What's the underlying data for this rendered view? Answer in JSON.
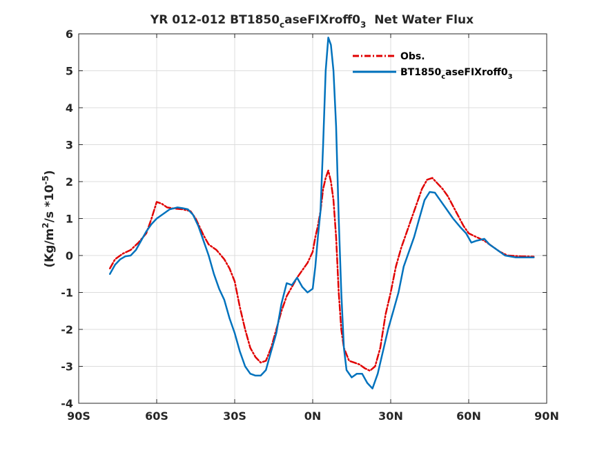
{
  "chart_data": {
    "type": "line",
    "title": "YR 012-012 BT1850_caseFIXroff0_3  Net Water Flux",
    "title_parts": {
      "pre": "YR 012-012 BT1850",
      "sub1": "c",
      "mid": "aseFIXroff0",
      "sub2": "3",
      "post": "  Net Water Flux"
    },
    "ylabel": "(Kg/m^2/s *10^-5)",
    "ylabel_parts": {
      "a": "(Kg/m",
      "sup1": "2",
      "b": "/s *10",
      "sup2": "-5",
      "c": ")"
    },
    "xlim": [
      -90,
      90
    ],
    "ylim": [
      -4,
      6
    ],
    "xticks": [
      -90,
      -60,
      -30,
      0,
      30,
      60,
      90
    ],
    "xtick_labels": [
      "90S",
      "60S",
      "30S",
      "0N",
      "30N",
      "60N",
      "90N"
    ],
    "yticks": [
      -4,
      -3,
      -2,
      -1,
      0,
      1,
      2,
      3,
      4,
      5,
      6
    ],
    "ytick_labels": [
      "-4",
      "-3",
      "-2",
      "-1",
      "0",
      "1",
      "2",
      "3",
      "4",
      "5",
      "6"
    ],
    "grid": true,
    "legend_position": "top-right",
    "series": [
      {
        "name": "Obs.",
        "label_parts": {
          "pre": "Obs."
        },
        "color": "#e00000",
        "style": "dashdot",
        "points": [
          [
            -78,
            -0.35
          ],
          [
            -76,
            -0.1
          ],
          [
            -73,
            0.05
          ],
          [
            -70,
            0.15
          ],
          [
            -67,
            0.35
          ],
          [
            -64,
            0.6
          ],
          [
            -62,
            1.0
          ],
          [
            -60,
            1.45
          ],
          [
            -58,
            1.4
          ],
          [
            -56,
            1.3
          ],
          [
            -53,
            1.27
          ],
          [
            -50,
            1.25
          ],
          [
            -47,
            1.2
          ],
          [
            -45,
            1.0
          ],
          [
            -42,
            0.55
          ],
          [
            -40,
            0.3
          ],
          [
            -37,
            0.15
          ],
          [
            -34,
            -0.1
          ],
          [
            -32,
            -0.35
          ],
          [
            -30,
            -0.7
          ],
          [
            -28,
            -1.4
          ],
          [
            -26,
            -2.0
          ],
          [
            -24,
            -2.5
          ],
          [
            -22,
            -2.75
          ],
          [
            -20,
            -2.9
          ],
          [
            -18,
            -2.85
          ],
          [
            -16,
            -2.5
          ],
          [
            -14,
            -2.0
          ],
          [
            -12,
            -1.5
          ],
          [
            -10,
            -1.1
          ],
          [
            -8,
            -0.85
          ],
          [
            -6,
            -0.6
          ],
          [
            -4,
            -0.4
          ],
          [
            -2,
            -0.2
          ],
          [
            0,
            0.1
          ],
          [
            1,
            0.5
          ],
          [
            2,
            0.8
          ],
          [
            3,
            1.2
          ],
          [
            4,
            1.8
          ],
          [
            5,
            2.1
          ],
          [
            6,
            2.3
          ],
          [
            7,
            2.0
          ],
          [
            8,
            1.5
          ],
          [
            9,
            0.5
          ],
          [
            10,
            -1.0
          ],
          [
            11,
            -2.0
          ],
          [
            12,
            -2.5
          ],
          [
            14,
            -2.85
          ],
          [
            16,
            -2.9
          ],
          [
            18,
            -2.95
          ],
          [
            20,
            -3.05
          ],
          [
            22,
            -3.12
          ],
          [
            24,
            -3.0
          ],
          [
            26,
            -2.5
          ],
          [
            28,
            -1.6
          ],
          [
            30,
            -1.0
          ],
          [
            32,
            -0.3
          ],
          [
            34,
            0.2
          ],
          [
            36,
            0.6
          ],
          [
            38,
            1.0
          ],
          [
            40,
            1.4
          ],
          [
            42,
            1.8
          ],
          [
            44,
            2.05
          ],
          [
            46,
            2.1
          ],
          [
            48,
            1.95
          ],
          [
            50,
            1.8
          ],
          [
            52,
            1.6
          ],
          [
            55,
            1.2
          ],
          [
            58,
            0.8
          ],
          [
            60,
            0.6
          ],
          [
            63,
            0.5
          ],
          [
            66,
            0.4
          ],
          [
            69,
            0.25
          ],
          [
            72,
            0.1
          ],
          [
            75,
            0.0
          ],
          [
            80,
            -0.02
          ],
          [
            85,
            -0.03
          ]
        ]
      },
      {
        "name": "BT1850_caseFIXroff0_3",
        "label_parts": {
          "pre": "BT1850",
          "sub1": "c",
          "mid": "aseFIXroff0",
          "sub2": "3"
        },
        "color": "#0072bd",
        "style": "solid",
        "points": [
          [
            -78,
            -0.5
          ],
          [
            -76,
            -0.25
          ],
          [
            -74,
            -0.1
          ],
          [
            -72,
            -0.02
          ],
          [
            -70,
            0.0
          ],
          [
            -68,
            0.15
          ],
          [
            -66,
            0.4
          ],
          [
            -64,
            0.65
          ],
          [
            -62,
            0.85
          ],
          [
            -60,
            1.0
          ],
          [
            -57,
            1.15
          ],
          [
            -55,
            1.25
          ],
          [
            -52,
            1.3
          ],
          [
            -50,
            1.28
          ],
          [
            -48,
            1.25
          ],
          [
            -46,
            1.1
          ],
          [
            -44,
            0.8
          ],
          [
            -42,
            0.4
          ],
          [
            -40,
            0.0
          ],
          [
            -38,
            -0.5
          ],
          [
            -36,
            -0.9
          ],
          [
            -34,
            -1.2
          ],
          [
            -32,
            -1.7
          ],
          [
            -30,
            -2.1
          ],
          [
            -28,
            -2.6
          ],
          [
            -26,
            -3.0
          ],
          [
            -24,
            -3.2
          ],
          [
            -22,
            -3.25
          ],
          [
            -20,
            -3.25
          ],
          [
            -18,
            -3.1
          ],
          [
            -16,
            -2.6
          ],
          [
            -14,
            -2.1
          ],
          [
            -12,
            -1.3
          ],
          [
            -10,
            -0.75
          ],
          [
            -8,
            -0.8
          ],
          [
            -6,
            -0.6
          ],
          [
            -4,
            -0.85
          ],
          [
            -2,
            -1.0
          ],
          [
            0,
            -0.9
          ],
          [
            1,
            -0.3
          ],
          [
            2,
            0.5
          ],
          [
            3,
            1.2
          ],
          [
            4,
            3.0
          ],
          [
            5,
            5.0
          ],
          [
            6,
            5.9
          ],
          [
            7,
            5.7
          ],
          [
            8,
            5.0
          ],
          [
            9,
            3.5
          ],
          [
            10,
            1.0
          ],
          [
            11,
            -1.0
          ],
          [
            12,
            -2.5
          ],
          [
            13,
            -3.1
          ],
          [
            15,
            -3.3
          ],
          [
            17,
            -3.2
          ],
          [
            19,
            -3.2
          ],
          [
            21,
            -3.45
          ],
          [
            23,
            -3.6
          ],
          [
            25,
            -3.2
          ],
          [
            27,
            -2.6
          ],
          [
            29,
            -2.0
          ],
          [
            31,
            -1.5
          ],
          [
            33,
            -1.0
          ],
          [
            35,
            -0.3
          ],
          [
            37,
            0.1
          ],
          [
            39,
            0.5
          ],
          [
            41,
            1.0
          ],
          [
            43,
            1.5
          ],
          [
            45,
            1.72
          ],
          [
            47,
            1.7
          ],
          [
            49,
            1.5
          ],
          [
            51,
            1.3
          ],
          [
            54,
            1.0
          ],
          [
            57,
            0.75
          ],
          [
            59,
            0.6
          ],
          [
            61,
            0.35
          ],
          [
            63,
            0.4
          ],
          [
            66,
            0.45
          ],
          [
            68,
            0.3
          ],
          [
            71,
            0.15
          ],
          [
            74,
            0.0
          ],
          [
            78,
            -0.05
          ],
          [
            82,
            -0.05
          ],
          [
            85,
            -0.05
          ]
        ]
      }
    ]
  }
}
